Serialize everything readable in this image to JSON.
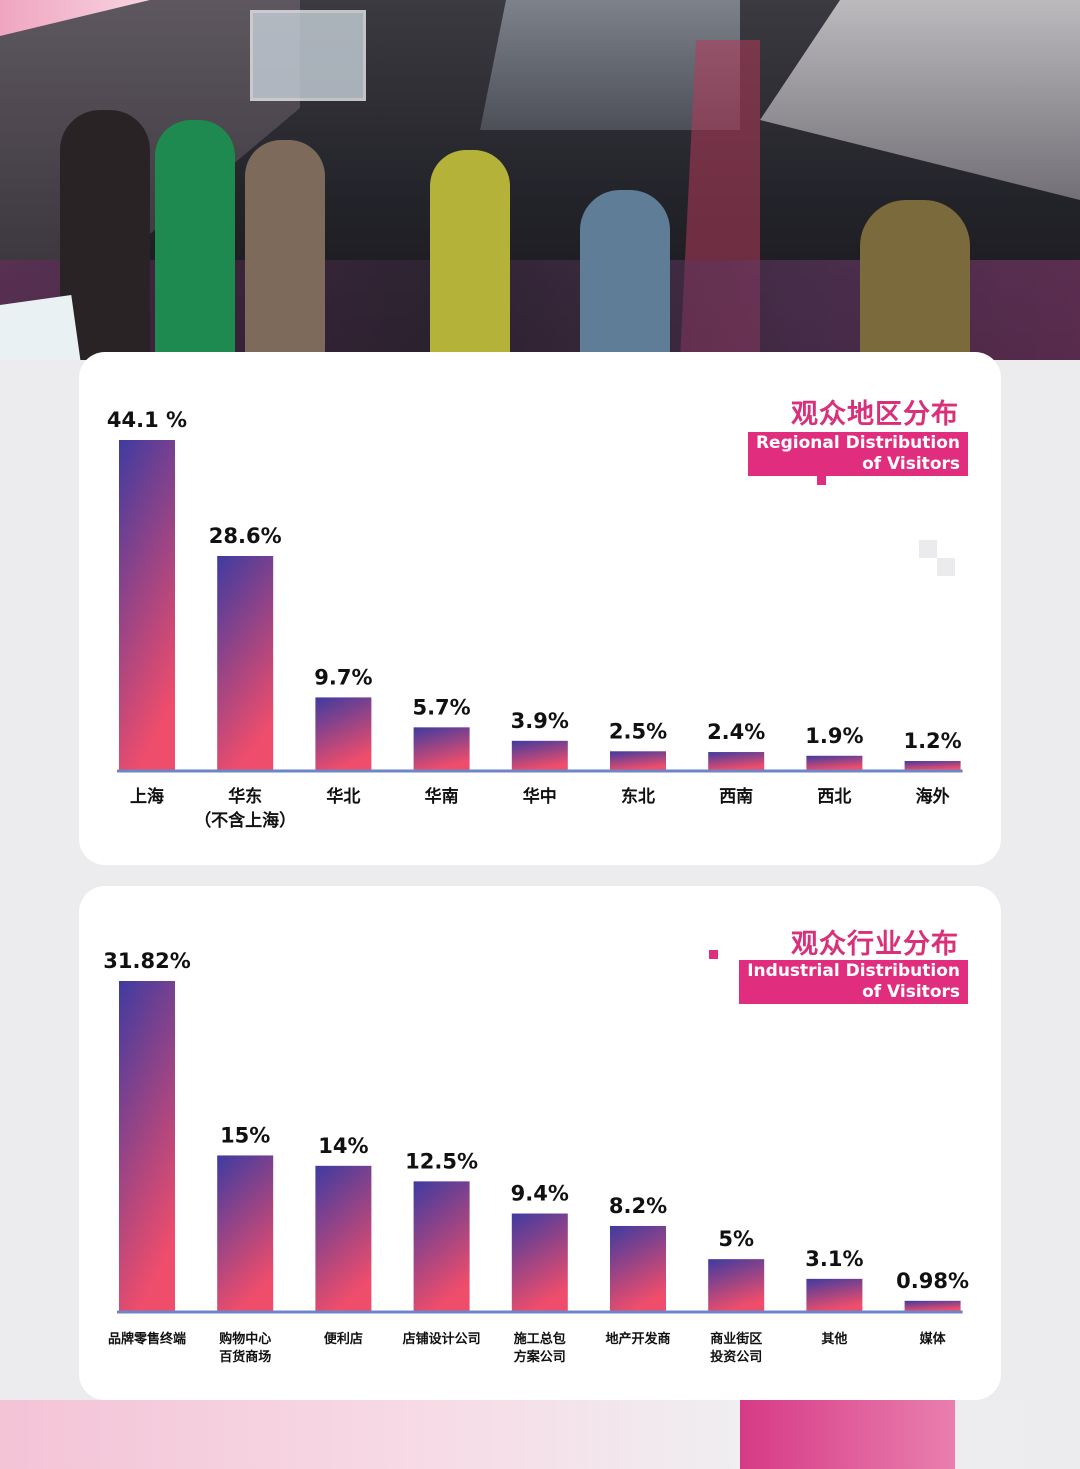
{
  "colors": {
    "bar_top": "#3f3ba0",
    "bar_bottom": "#ee4d6c",
    "baseline": "#6f86c6",
    "title_pink": "#d9307a",
    "label_bg": "#e02d7e"
  },
  "regional": {
    "title_cn": "观众地区分布",
    "title_en_line1": "Regional Distribution",
    "title_en_line2": "of Visitors"
  },
  "industrial": {
    "title_cn": "观众行业分布",
    "title_en_line1": "Industrial Distribution",
    "title_en_line2": "of Visitors"
  },
  "chart_data": [
    {
      "type": "bar",
      "title": "观众地区分布",
      "subtitle": "Regional Distribution of Visitors",
      "categories": [
        [
          "上海"
        ],
        [
          "华东",
          "（不含上海）"
        ],
        [
          "华北"
        ],
        [
          "华南"
        ],
        [
          "华中"
        ],
        [
          "东北"
        ],
        [
          "西南"
        ],
        [
          "西北"
        ],
        [
          "海外"
        ]
      ],
      "values": [
        44.1,
        28.6,
        9.7,
        5.7,
        3.9,
        2.5,
        2.4,
        1.9,
        1.2
      ],
      "value_labels": [
        "44.1 %",
        "28.6%",
        "9.7%",
        "5.7%",
        "3.9%",
        "2.5%",
        "2.4%",
        "1.9%",
        "1.2%"
      ],
      "unit": "%",
      "grid": false,
      "legend": "none"
    },
    {
      "type": "bar",
      "title": "观众行业分布",
      "subtitle": "Industrial Distribution of Visitors",
      "categories": [
        [
          "品牌零售终端"
        ],
        [
          "购物中心",
          "百货商场"
        ],
        [
          "便利店"
        ],
        [
          "店铺设计公司"
        ],
        [
          "施工总包",
          "方案公司"
        ],
        [
          "地产开发商"
        ],
        [
          "商业街区",
          "投资公司"
        ],
        [
          "其他"
        ],
        [
          "媒体"
        ]
      ],
      "values": [
        31.82,
        15,
        14,
        12.5,
        9.4,
        8.2,
        5,
        3.1,
        0.98
      ],
      "value_labels": [
        "31.82%",
        "15%",
        "14%",
        "12.5%",
        "9.4%",
        "8.2%",
        "5%",
        "3.1%",
        "0.98%"
      ],
      "unit": "%",
      "grid": false,
      "legend": "none"
    }
  ]
}
